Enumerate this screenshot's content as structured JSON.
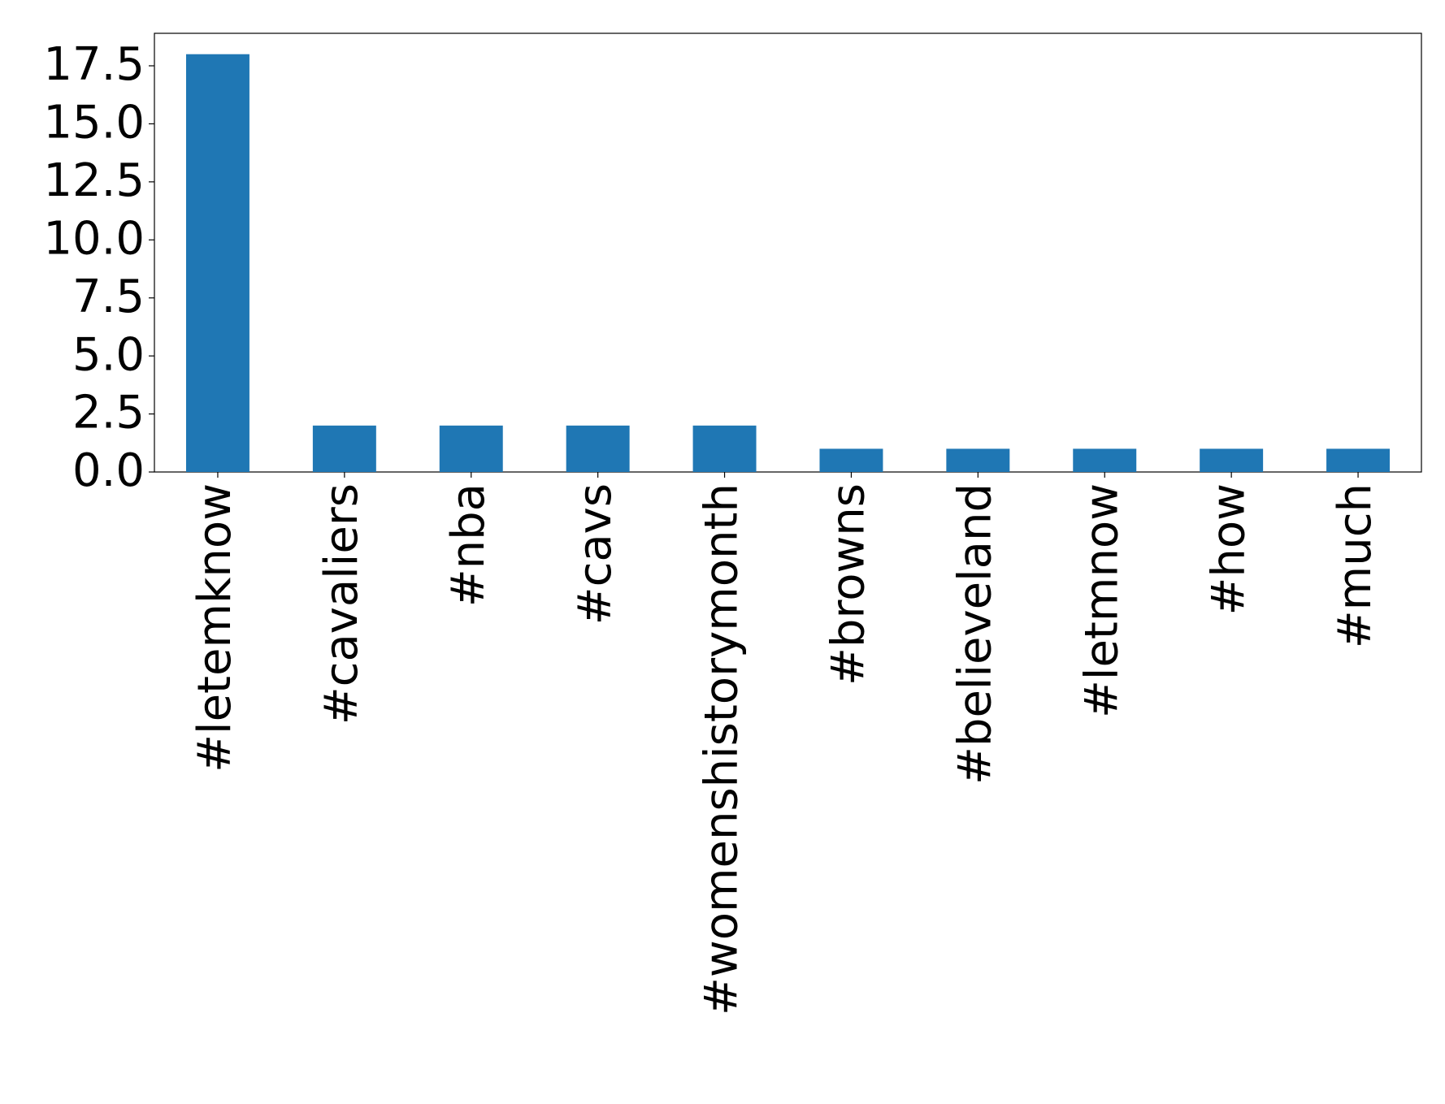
{
  "chart_data": {
    "type": "bar",
    "categories": [
      "#letemknow",
      "#cavaliers",
      "#nba",
      "#cavs",
      "#womenshistorymonth",
      "#browns",
      "#believeland",
      "#letmnow",
      "#how",
      "#much"
    ],
    "values": [
      18,
      2,
      2,
      2,
      2,
      1,
      1,
      1,
      1,
      1
    ],
    "color": "#1f77b4",
    "ylim": [
      0,
      18.9
    ],
    "yticks": [
      {
        "value": 0,
        "label": "0.0"
      },
      2.5,
      {
        "value": 5,
        "label": "5.0"
      },
      7.5,
      {
        "value": 10,
        "label": "10.0"
      },
      12.5,
      {
        "value": 15,
        "label": "15.0"
      },
      17.5
    ],
    "grid": false
  }
}
